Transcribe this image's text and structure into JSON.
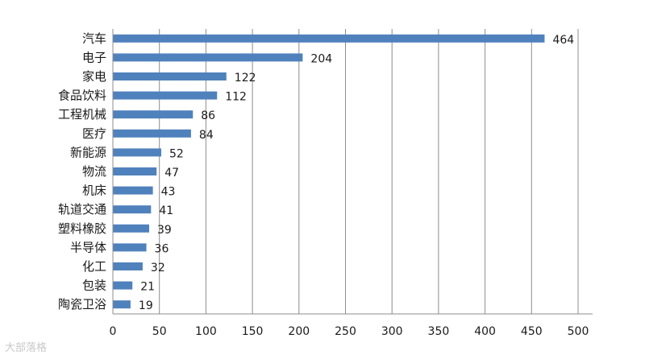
{
  "chart_data": {
    "type": "bar",
    "orientation": "horizontal",
    "categories": [
      "汽车",
      "电子",
      "家电",
      "食品饮料",
      "工程机械",
      "医疗",
      "新能源",
      "物流",
      "机床",
      "轨道交通",
      "塑料橡胶",
      "半导体",
      "化工",
      "包装",
      "陶瓷卫浴"
    ],
    "values": [
      464,
      204,
      122,
      112,
      86,
      84,
      52,
      47,
      43,
      41,
      39,
      36,
      32,
      21,
      19
    ],
    "xlim": [
      0,
      500
    ],
    "xticks": [
      0,
      50,
      100,
      150,
      200,
      250,
      300,
      350,
      400,
      450,
      500
    ],
    "grid": true,
    "data_labels": true,
    "bar_color": "#4f81bd",
    "title": "",
    "xlabel": "",
    "ylabel": ""
  },
  "watermark": "大部落格"
}
